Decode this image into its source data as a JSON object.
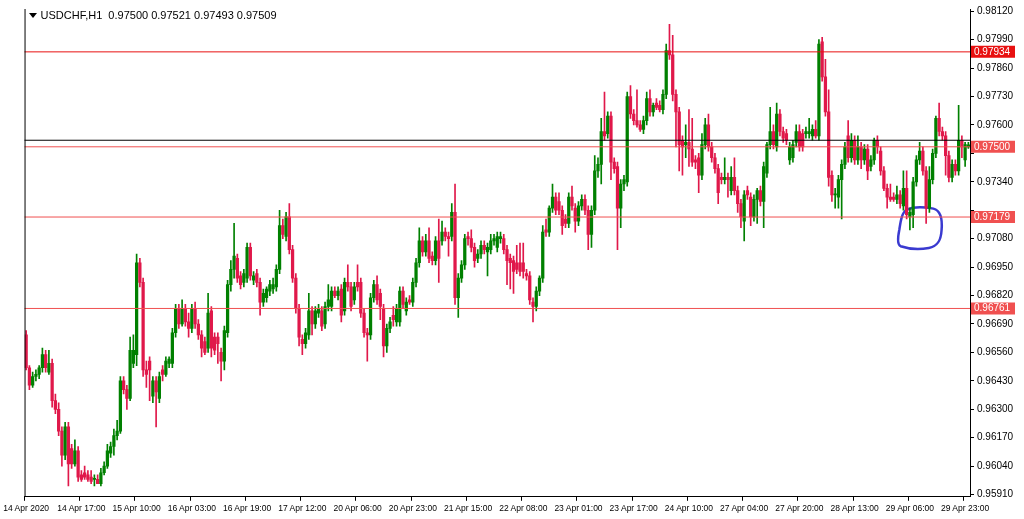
{
  "chart_data": {
    "type": "candlestick",
    "title": "USDCHF,H1  0.97500 0.97521 0.97493 0.97509",
    "categories": [
      "14 Apr 2020",
      null,
      null,
      null,
      null,
      null,
      null,
      null,
      null,
      null,
      null,
      null,
      null,
      null,
      null,
      null,
      null,
      "14 Apr 17:00",
      null,
      null,
      null,
      null,
      null,
      null,
      null,
      null,
      null,
      null,
      null,
      null,
      null,
      null,
      null,
      null,
      "15 Apr 10:00",
      null,
      null,
      null,
      null,
      null,
      null,
      null,
      null,
      null,
      null,
      null,
      null,
      null,
      null,
      null,
      null,
      "16 Apr 03:00",
      null,
      null,
      null,
      null,
      null,
      null,
      null,
      null,
      null,
      null,
      null,
      null,
      null,
      null,
      null,
      null,
      "16 Apr 19:00",
      null,
      null,
      null,
      null,
      null,
      null,
      null,
      null,
      null,
      null,
      null,
      null,
      null,
      null,
      null,
      null,
      "17 Apr 12:00",
      null,
      null,
      null,
      null,
      null,
      null,
      null,
      null,
      null,
      null,
      null,
      null,
      null,
      null,
      null,
      null,
      "20 Apr 06:00",
      null,
      null,
      null,
      null,
      null,
      null,
      null,
      null,
      null,
      null,
      null,
      null,
      null,
      null,
      null,
      null,
      "20 Apr 23:00",
      null,
      null,
      null,
      null,
      null,
      null,
      null,
      null,
      null,
      null,
      null,
      null,
      null,
      null,
      null,
      null,
      "21 Apr 15:00",
      null,
      null,
      null,
      null,
      null,
      null,
      null,
      null,
      null,
      null,
      null,
      null,
      null,
      null,
      null,
      null,
      "22 Apr 08:00",
      null,
      null,
      null,
      null,
      null,
      null,
      null,
      null,
      null,
      null,
      null,
      null,
      null,
      null,
      null,
      null,
      "23 Apr 01:00",
      null,
      null,
      null,
      null,
      null,
      null,
      null,
      null,
      null,
      null,
      null,
      null,
      null,
      null,
      null,
      null,
      "23 Apr 17:00",
      null,
      null,
      null,
      null,
      null,
      null,
      null,
      null,
      null,
      null,
      null,
      null,
      null,
      null,
      null,
      null,
      "24 Apr 10:00",
      null,
      null,
      null,
      null,
      null,
      null,
      null,
      null,
      null,
      null,
      null,
      null,
      null,
      null,
      null,
      null,
      "27 Apr 04:00",
      null,
      null,
      null,
      null,
      null,
      null,
      null,
      null,
      null,
      null,
      null,
      null,
      null,
      null,
      null,
      null,
      "27 Apr 20:00",
      null,
      null,
      null,
      null,
      null,
      null,
      null,
      null,
      null,
      null,
      null,
      null,
      null,
      null,
      null,
      null,
      "28 Apr 13:00",
      null,
      null,
      null,
      null,
      null,
      null,
      null,
      null,
      null,
      null,
      null,
      null,
      null,
      null,
      null,
      null,
      "29 Apr 06:00",
      null,
      null,
      null,
      null,
      null,
      null,
      null,
      null,
      null,
      null,
      null,
      null,
      null,
      null,
      null,
      null,
      "29 Apr 23:00",
      null
    ],
    "ohlc": [
      [
        0.9664,
        0.9666,
        0.9648,
        0.9649
      ],
      [
        0.9649,
        0.965,
        0.9639,
        0.9641
      ],
      [
        0.9641,
        0.9647,
        0.964,
        0.9645
      ],
      [
        0.9645,
        0.9648,
        0.9643,
        0.9646
      ],
      [
        0.9646,
        0.965,
        0.9644,
        0.9649
      ],
      [
        0.9649,
        0.9658,
        0.9647,
        0.9655
      ],
      [
        0.9655,
        0.9657,
        0.9647,
        0.9649
      ],
      [
        0.9647,
        0.9657,
        0.9646,
        0.9651
      ],
      [
        0.9651,
        0.9653,
        0.9631,
        0.9634
      ],
      [
        0.9634,
        0.9637,
        0.9628,
        0.963
      ],
      [
        0.963,
        0.9633,
        0.9618,
        0.962
      ],
      [
        0.962,
        0.9622,
        0.9604,
        0.9609
      ],
      [
        0.9609,
        0.9624,
        0.9607,
        0.9622
      ],
      [
        0.9622,
        0.9624,
        0.9595,
        0.9605
      ],
      [
        0.9612,
        0.9614,
        0.9603,
        0.9605
      ],
      [
        0.9605,
        0.9616,
        0.9604,
        0.9611
      ],
      [
        0.9611,
        0.9613,
        0.9597,
        0.9599
      ],
      [
        0.96,
        0.9602,
        0.9597,
        0.9598
      ],
      [
        0.9601,
        0.9604,
        0.9598,
        0.9599
      ],
      [
        0.96,
        0.9602,
        0.9597,
        0.9598
      ],
      [
        0.9599,
        0.9602,
        0.9596,
        0.9597
      ],
      [
        0.9598,
        0.96,
        0.9595,
        0.9598
      ],
      [
        0.9598,
        0.96,
        0.9596,
        0.9596
      ],
      [
        0.9596,
        0.9603,
        0.9595,
        0.9601
      ],
      [
        0.9601,
        0.9606,
        0.96,
        0.9604
      ],
      [
        0.9604,
        0.9614,
        0.9603,
        0.9611
      ],
      [
        0.961,
        0.9615,
        0.9608,
        0.9613
      ],
      [
        0.9613,
        0.9621,
        0.9609,
        0.9618
      ],
      [
        0.9618,
        0.9625,
        0.9616,
        0.962
      ],
      [
        0.962,
        0.9645,
        0.9619,
        0.9643
      ],
      [
        0.9643,
        0.9645,
        0.9637,
        0.9639
      ],
      [
        0.9639,
        0.9641,
        0.963,
        0.9635
      ],
      [
        0.9635,
        0.9663,
        0.9634,
        0.9657
      ],
      [
        0.9651,
        0.9664,
        0.9649,
        0.9657
      ],
      [
        0.9655,
        0.9701,
        0.965,
        0.9697
      ],
      [
        0.9697,
        0.9699,
        0.9686,
        0.9688
      ],
      [
        0.9688,
        0.969,
        0.9645,
        0.9648
      ],
      [
        0.9648,
        0.9652,
        0.964,
        0.9646
      ],
      [
        0.9652,
        0.9654,
        0.9634,
        0.9648
      ],
      [
        0.9636,
        0.9645,
        0.9633,
        0.9643
      ],
      [
        0.9643,
        0.9645,
        0.9622,
        0.9638
      ],
      [
        0.9635,
        0.9647,
        0.9633,
        0.9645
      ],
      [
        0.9648,
        0.965,
        0.9643,
        0.9646
      ],
      [
        0.9646,
        0.9654,
        0.9645,
        0.9652
      ],
      [
        0.9651,
        0.9654,
        0.9649,
        0.9653
      ],
      [
        0.9651,
        0.9667,
        0.9649,
        0.9665
      ],
      [
        0.9665,
        0.9678,
        0.9663,
        0.9676
      ],
      [
        0.9676,
        0.9678,
        0.9667,
        0.9669
      ],
      [
        0.9669,
        0.968,
        0.9668,
        0.9676
      ],
      [
        0.9676,
        0.9678,
        0.9668,
        0.967
      ],
      [
        0.967,
        0.9674,
        0.9663,
        0.9667
      ],
      [
        0.9667,
        0.9678,
        0.9665,
        0.9676
      ],
      [
        0.9676,
        0.9679,
        0.9667,
        0.9669
      ],
      [
        0.9669,
        0.9671,
        0.9662,
        0.9664
      ],
      [
        0.9664,
        0.9666,
        0.9654,
        0.9658
      ],
      [
        0.9661,
        0.9663,
        0.9655,
        0.9656
      ],
      [
        0.9658,
        0.9683,
        0.9656,
        0.9674
      ],
      [
        0.9675,
        0.9677,
        0.9654,
        0.9658
      ],
      [
        0.9663,
        0.9665,
        0.9655,
        0.9657
      ],
      [
        0.9663,
        0.9665,
        0.9651,
        0.966
      ],
      [
        0.9656,
        0.9658,
        0.9643,
        0.9652
      ],
      [
        0.9652,
        0.9668,
        0.9648,
        0.9666
      ],
      [
        0.9665,
        0.9689,
        0.9663,
        0.9687
      ],
      [
        0.9687,
        0.9698,
        0.9684,
        0.9694
      ],
      [
        0.9694,
        0.9715,
        0.969,
        0.97
      ],
      [
        0.9699,
        0.9701,
        0.9688,
        0.969
      ],
      [
        0.9691,
        0.9693,
        0.9685,
        0.9687
      ],
      [
        0.9688,
        0.9694,
        0.9686,
        0.9692
      ],
      [
        0.969,
        0.9706,
        0.9688,
        0.9704
      ],
      [
        0.9704,
        0.9706,
        0.9689,
        0.9691
      ],
      [
        0.9689,
        0.9693,
        0.9687,
        0.9691
      ],
      [
        0.9692,
        0.9694,
        0.9686,
        0.9688
      ],
      [
        0.9688,
        0.969,
        0.9673,
        0.9679
      ],
      [
        0.9679,
        0.9685,
        0.9677,
        0.9683
      ],
      [
        0.9681,
        0.9686,
        0.9679,
        0.9685
      ],
      [
        0.9684,
        0.9689,
        0.9682,
        0.9687
      ],
      [
        0.9685,
        0.969,
        0.9683,
        0.9687
      ],
      [
        0.9686,
        0.9696,
        0.9684,
        0.9694
      ],
      [
        0.9694,
        0.9721,
        0.9692,
        0.9714
      ],
      [
        0.9714,
        0.9717,
        0.9708,
        0.971
      ],
      [
        0.9709,
        0.972,
        0.9707,
        0.9718
      ],
      [
        0.9718,
        0.9724,
        0.9701,
        0.9703
      ],
      [
        0.9703,
        0.9705,
        0.9688,
        0.969
      ],
      [
        0.969,
        0.9692,
        0.9674,
        0.9676
      ],
      [
        0.9676,
        0.9678,
        0.9659,
        0.9663
      ],
      [
        0.9662,
        0.9664,
        0.9655,
        0.966
      ],
      [
        0.966,
        0.9667,
        0.9658,
        0.9665
      ],
      [
        0.9664,
        0.9683,
        0.9662,
        0.9675
      ],
      [
        0.9675,
        0.9677,
        0.9664,
        0.9669
      ],
      [
        0.9669,
        0.9677,
        0.9667,
        0.9675
      ],
      [
        0.9674,
        0.9678,
        0.9672,
        0.9676
      ],
      [
        0.9675,
        0.9677,
        0.9666,
        0.9668
      ],
      [
        0.9669,
        0.9679,
        0.9667,
        0.9677
      ],
      [
        0.9677,
        0.9687,
        0.9675,
        0.968
      ],
      [
        0.9677,
        0.9686,
        0.9675,
        0.9684
      ],
      [
        0.9684,
        0.9686,
        0.9681,
        0.9682
      ],
      [
        0.9682,
        0.9686,
        0.968,
        0.9684
      ],
      [
        0.9685,
        0.9687,
        0.967,
        0.9673
      ],
      [
        0.9675,
        0.969,
        0.9673,
        0.9688
      ],
      [
        0.9688,
        0.9696,
        0.9684,
        0.9686
      ],
      [
        0.9686,
        0.9688,
        0.9675,
        0.9677
      ],
      [
        0.968,
        0.9688,
        0.9678,
        0.9686
      ],
      [
        0.9688,
        0.9696,
        0.9684,
        0.9686
      ],
      [
        0.9688,
        0.969,
        0.9672,
        0.9674
      ],
      [
        0.9674,
        0.9676,
        0.9663,
        0.9665
      ],
      [
        0.9665,
        0.9667,
        0.9652,
        0.9664
      ],
      [
        0.9664,
        0.9683,
        0.9662,
        0.9681
      ],
      [
        0.9681,
        0.9689,
        0.9679,
        0.9687
      ],
      [
        0.9687,
        0.9691,
        0.9678,
        0.968
      ],
      [
        0.9683,
        0.9685,
        0.9671,
        0.9677
      ],
      [
        0.9676,
        0.9678,
        0.9654,
        0.9659
      ],
      [
        0.9659,
        0.9669,
        0.9656,
        0.9667
      ],
      [
        0.9667,
        0.9672,
        0.9665,
        0.967
      ],
      [
        0.9673,
        0.9677,
        0.9668,
        0.9671
      ],
      [
        0.967,
        0.9678,
        0.9668,
        0.9676
      ],
      [
        0.967,
        0.9686,
        0.9668,
        0.9684
      ],
      [
        0.9684,
        0.9686,
        0.9676,
        0.9678
      ],
      [
        0.9675,
        0.9681,
        0.9673,
        0.9679
      ],
      [
        0.968,
        0.9682,
        0.9678,
        0.9679
      ],
      [
        0.9679,
        0.969,
        0.9677,
        0.9688
      ],
      [
        0.9688,
        0.9699,
        0.9686,
        0.9697
      ],
      [
        0.9697,
        0.9713,
        0.9695,
        0.9707
      ],
      [
        0.9707,
        0.9709,
        0.97,
        0.9702
      ],
      [
        0.9702,
        0.971,
        0.97,
        0.9707
      ],
      [
        0.9707,
        0.9713,
        0.9697,
        0.9699
      ],
      [
        0.97,
        0.9702,
        0.9696,
        0.9698
      ],
      [
        0.9698,
        0.9709,
        0.9696,
        0.9707
      ],
      [
        0.9707,
        0.9717,
        0.9688,
        0.9699
      ],
      [
        0.9707,
        0.9716,
        0.9705,
        0.9711
      ],
      [
        0.9711,
        0.9713,
        0.9707,
        0.9709
      ],
      [
        0.9709,
        0.9711,
        0.97,
        0.9708
      ],
      [
        0.9709,
        0.9724,
        0.9707,
        0.972
      ],
      [
        0.972,
        0.9733,
        0.9678,
        0.9681
      ],
      [
        0.9681,
        0.9692,
        0.9672,
        0.969
      ],
      [
        0.969,
        0.9698,
        0.9688,
        0.9696
      ],
      [
        0.9696,
        0.971,
        0.9694,
        0.9708
      ],
      [
        0.9709,
        0.9711,
        0.9705,
        0.9708
      ],
      [
        0.9708,
        0.9712,
        0.9702,
        0.9704
      ],
      [
        0.9704,
        0.9706,
        0.9695,
        0.9698
      ],
      [
        0.9699,
        0.9703,
        0.9697,
        0.9701
      ],
      [
        0.9701,
        0.9707,
        0.9699,
        0.9705
      ],
      [
        0.9705,
        0.9707,
        0.9701,
        0.9703
      ],
      [
        0.9702,
        0.9706,
        0.9691,
        0.9704
      ],
      [
        0.9703,
        0.971,
        0.9701,
        0.9707
      ],
      [
        0.9707,
        0.971,
        0.9705,
        0.9708
      ],
      [
        0.9704,
        0.9711,
        0.9702,
        0.9709
      ],
      [
        0.9708,
        0.9711,
        0.9706,
        0.9709
      ],
      [
        0.9708,
        0.971,
        0.9701,
        0.9703
      ],
      [
        0.9703,
        0.9705,
        0.9687,
        0.9698
      ],
      [
        0.9699,
        0.9701,
        0.9685,
        0.9697
      ],
      [
        0.9698,
        0.97,
        0.9683,
        0.9693
      ],
      [
        0.9697,
        0.9705,
        0.9692,
        0.9694
      ],
      [
        0.9697,
        0.9706,
        0.9691,
        0.9693
      ],
      [
        0.9697,
        0.9706,
        0.969,
        0.9693
      ],
      [
        0.9692,
        0.9694,
        0.9689,
        0.9691
      ],
      [
        0.9691,
        0.9693,
        0.9678,
        0.968
      ],
      [
        0.9679,
        0.9681,
        0.967,
        0.9677
      ],
      [
        0.9677,
        0.9686,
        0.9675,
        0.9684
      ],
      [
        0.9684,
        0.9691,
        0.9682,
        0.969
      ],
      [
        0.969,
        0.9714,
        0.9688,
        0.9711
      ],
      [
        0.9712,
        0.9717,
        0.9709,
        0.9711
      ],
      [
        0.9711,
        0.9723,
        0.9709,
        0.9722
      ],
      [
        0.9722,
        0.9733,
        0.972,
        0.9727
      ],
      [
        0.9727,
        0.9729,
        0.9719,
        0.9721
      ],
      [
        0.9725,
        0.9729,
        0.9719,
        0.9721
      ],
      [
        0.9721,
        0.9723,
        0.971,
        0.9714
      ],
      [
        0.9717,
        0.9719,
        0.9713,
        0.9715
      ],
      [
        0.9715,
        0.9729,
        0.9713,
        0.9727
      ],
      [
        0.9727,
        0.9732,
        0.9721,
        0.9723
      ],
      [
        0.9722,
        0.9724,
        0.9711,
        0.9716
      ],
      [
        0.9716,
        0.9725,
        0.9714,
        0.9723
      ],
      [
        0.9723,
        0.9728,
        0.9721,
        0.9726
      ],
      [
        0.9726,
        0.9728,
        0.9719,
        0.9721
      ],
      [
        0.9721,
        0.9723,
        0.9703,
        0.971
      ],
      [
        0.971,
        0.9723,
        0.9704,
        0.9721
      ],
      [
        0.9721,
        0.9746,
        0.9719,
        0.9739
      ],
      [
        0.9739,
        0.9745,
        0.9736,
        0.9742
      ],
      [
        0.9742,
        0.9763,
        0.9733,
        0.9757
      ],
      [
        0.9757,
        0.9775,
        0.9753,
        0.9755
      ],
      [
        0.9756,
        0.9766,
        0.9754,
        0.9764
      ],
      [
        0.9764,
        0.9766,
        0.9735,
        0.9743
      ],
      [
        0.9743,
        0.9745,
        0.9738,
        0.974
      ],
      [
        0.9741,
        0.9743,
        0.9703,
        0.9722
      ],
      [
        0.9722,
        0.9735,
        0.9713,
        0.9733
      ],
      [
        0.9733,
        0.9737,
        0.973,
        0.9735
      ],
      [
        0.9734,
        0.9775,
        0.9732,
        0.9773
      ],
      [
        0.9773,
        0.9778,
        0.9763,
        0.9765
      ],
      [
        0.9765,
        0.9767,
        0.976,
        0.9762
      ],
      [
        0.9762,
        0.9776,
        0.9759,
        0.976
      ],
      [
        0.976,
        0.9762,
        0.9757,
        0.9758
      ],
      [
        0.9758,
        0.9764,
        0.9756,
        0.9762
      ],
      [
        0.9762,
        0.9775,
        0.976,
        0.9772
      ],
      [
        0.9772,
        0.9776,
        0.9764,
        0.9766
      ],
      [
        0.9766,
        0.977,
        0.9764,
        0.9769
      ],
      [
        0.977,
        0.9772,
        0.9767,
        0.9768
      ],
      [
        0.9769,
        0.9771,
        0.9766,
        0.9767
      ],
      [
        0.9767,
        0.9776,
        0.9765,
        0.9774
      ],
      [
        0.9774,
        0.9797,
        0.9772,
        0.9794
      ],
      [
        0.9794,
        0.9806,
        0.979,
        0.9792
      ],
      [
        0.9792,
        0.9801,
        0.9771,
        0.9774
      ],
      [
        0.9774,
        0.9776,
        0.975,
        0.9766
      ],
      [
        0.9766,
        0.9768,
        0.9739,
        0.9751
      ],
      [
        0.9753,
        0.9755,
        0.9737,
        0.975
      ],
      [
        0.9751,
        0.976,
        0.9745,
        0.9752
      ],
      [
        0.9752,
        0.9767,
        0.9741,
        0.9749
      ],
      [
        0.9749,
        0.9763,
        0.9741,
        0.9743
      ],
      [
        0.9744,
        0.9746,
        0.974,
        0.9743
      ],
      [
        0.9745,
        0.9747,
        0.9729,
        0.9737
      ],
      [
        0.9737,
        0.9756,
        0.9735,
        0.9751
      ],
      [
        0.9751,
        0.9763,
        0.9749,
        0.976
      ],
      [
        0.976,
        0.9765,
        0.9748,
        0.975
      ],
      [
        0.975,
        0.9752,
        0.9743,
        0.9745
      ],
      [
        0.9745,
        0.9747,
        0.9738,
        0.974
      ],
      [
        0.974,
        0.9742,
        0.9724,
        0.9729
      ],
      [
        0.9736,
        0.9738,
        0.9733,
        0.9735
      ],
      [
        0.9735,
        0.9745,
        0.9733,
        0.9736
      ],
      [
        0.9736,
        0.9738,
        0.9727,
        0.9735
      ],
      [
        0.973,
        0.9741,
        0.9728,
        0.9736
      ],
      [
        0.9736,
        0.9745,
        0.9728,
        0.973
      ],
      [
        0.973,
        0.9732,
        0.972,
        0.9724
      ],
      [
        0.9724,
        0.9726,
        0.9713,
        0.9718
      ],
      [
        0.9716,
        0.973,
        0.9707,
        0.9728
      ],
      [
        0.973,
        0.9732,
        0.9726,
        0.9728
      ],
      [
        0.9727,
        0.9729,
        0.9714,
        0.9718
      ],
      [
        0.9718,
        0.9728,
        0.9716,
        0.9726
      ],
      [
        0.9726,
        0.9731,
        0.9715,
        0.973
      ],
      [
        0.973,
        0.9732,
        0.9723,
        0.9725
      ],
      [
        0.9725,
        0.9743,
        0.9713,
        0.9741
      ],
      [
        0.9738,
        0.9752,
        0.9736,
        0.9751
      ],
      [
        0.9751,
        0.9768,
        0.9749,
        0.9757
      ],
      [
        0.9757,
        0.976,
        0.9749,
        0.9751
      ],
      [
        0.975,
        0.977,
        0.9748,
        0.9765
      ],
      [
        0.9765,
        0.9767,
        0.9755,
        0.9757
      ],
      [
        0.9757,
        0.9759,
        0.9752,
        0.9754
      ],
      [
        0.9756,
        0.9758,
        0.9751,
        0.9753
      ],
      [
        0.9744,
        0.9752,
        0.9742,
        0.975
      ],
      [
        0.9745,
        0.9753,
        0.9743,
        0.9751
      ],
      [
        0.9752,
        0.976,
        0.975,
        0.9757
      ],
      [
        0.9757,
        0.976,
        0.9748,
        0.975
      ],
      [
        0.9756,
        0.9758,
        0.9748,
        0.975
      ],
      [
        0.9756,
        0.9759,
        0.9754,
        0.9757
      ],
      [
        0.9756,
        0.9763,
        0.9754,
        0.9757
      ],
      [
        0.9755,
        0.976,
        0.9753,
        0.9758
      ],
      [
        0.9758,
        0.9762,
        0.9754,
        0.9755
      ],
      [
        0.9755,
        0.9799,
        0.9753,
        0.9797
      ],
      [
        0.9798,
        0.98,
        0.978,
        0.9782
      ],
      [
        0.9782,
        0.979,
        0.9764,
        0.9766
      ],
      [
        0.9766,
        0.9776,
        0.9732,
        0.9736
      ],
      [
        0.9737,
        0.9739,
        0.9725,
        0.9728
      ],
      [
        0.9728,
        0.9731,
        0.9722,
        0.9728
      ],
      [
        0.9727,
        0.9737,
        0.9722,
        0.9735
      ],
      [
        0.9735,
        0.9744,
        0.9717,
        0.9742
      ],
      [
        0.9742,
        0.9752,
        0.974,
        0.975
      ],
      [
        0.9755,
        0.9762,
        0.9743,
        0.9745
      ],
      [
        0.9745,
        0.9756,
        0.9743,
        0.9753
      ],
      [
        0.9753,
        0.9755,
        0.9742,
        0.9744
      ],
      [
        0.9744,
        0.9755,
        0.9742,
        0.975
      ],
      [
        0.975,
        0.9752,
        0.974,
        0.9744
      ],
      [
        0.9744,
        0.9751,
        0.9742,
        0.9749
      ],
      [
        0.9749,
        0.9751,
        0.9735,
        0.9739
      ],
      [
        0.9741,
        0.9746,
        0.9739,
        0.9744
      ],
      [
        0.9744,
        0.9754,
        0.9742,
        0.9753
      ],
      [
        0.9753,
        0.9755,
        0.9747,
        0.975
      ],
      [
        0.9748,
        0.975,
        0.9737,
        0.9739
      ],
      [
        0.9739,
        0.9741,
        0.973,
        0.9731
      ],
      [
        0.9731,
        0.9733,
        0.9722,
        0.9727
      ],
      [
        0.9727,
        0.9733,
        0.9725,
        0.9726
      ],
      [
        0.9727,
        0.9729,
        0.9725,
        0.9726
      ],
      [
        0.9726,
        0.9732,
        0.9724,
        0.9728
      ],
      [
        0.9728,
        0.973,
        0.9722,
        0.9724
      ],
      [
        0.9723,
        0.9739,
        0.9721,
        0.9731
      ],
      [
        0.9731,
        0.9739,
        0.9717,
        0.9719
      ],
      [
        0.9718,
        0.9722,
        0.9712,
        0.972
      ],
      [
        0.9719,
        0.9736,
        0.9713,
        0.9734
      ],
      [
        0.9734,
        0.9746,
        0.9732,
        0.9744
      ],
      [
        0.9744,
        0.9752,
        0.9742,
        0.9748
      ],
      [
        0.9748,
        0.975,
        0.9737,
        0.9739
      ],
      [
        0.9739,
        0.9741,
        0.9715,
        0.9722
      ],
      [
        0.9722,
        0.9741,
        0.972,
        0.9735
      ],
      [
        0.9735,
        0.9749,
        0.9733,
        0.9747
      ],
      [
        0.9747,
        0.9764,
        0.9745,
        0.9763
      ],
      [
        0.9763,
        0.977,
        0.9755,
        0.9757
      ],
      [
        0.9757,
        0.9759,
        0.9753,
        0.9755
      ],
      [
        0.9755,
        0.9757,
        0.9737,
        0.9746
      ],
      [
        0.9746,
        0.9748,
        0.9734,
        0.9736
      ],
      [
        0.9736,
        0.9744,
        0.9734,
        0.9742
      ],
      [
        0.9742,
        0.9744,
        0.9737,
        0.9739
      ],
      [
        0.9739,
        0.9769,
        0.9737,
        0.9753
      ],
      [
        0.9753,
        0.9755,
        0.9745,
        0.975
      ],
      [
        0.9744,
        0.9752,
        0.9741,
        0.9751
      ],
      [
        0.975,
        0.97521,
        0.97493,
        0.97509
      ]
    ],
    "ylim": [
      0.959,
      0.9813
    ],
    "yticks": [
      {
        "value": 0.9591,
        "label": "0.95910"
      },
      {
        "value": 0.9604,
        "label": "0.96040"
      },
      {
        "value": 0.9617,
        "label": "0.96170"
      },
      {
        "value": 0.963,
        "label": "0.96300"
      },
      {
        "value": 0.9643,
        "label": "0.96430"
      },
      {
        "value": 0.9656,
        "label": "0.96560"
      },
      {
        "value": 0.9669,
        "label": "0.96690"
      },
      {
        "value": 0.9682,
        "label": "0.96820"
      },
      {
        "value": 0.9695,
        "label": "0.96950"
      },
      {
        "value": 0.9708,
        "label": "0.97080"
      },
      {
        "value": 0.9721,
        "label": null
      },
      {
        "value": 0.9734,
        "label": "0.97340"
      },
      {
        "value": 0.9747,
        "label": null
      },
      {
        "value": 0.976,
        "label": "0.97600"
      },
      {
        "value": 0.9773,
        "label": "0.97730"
      },
      {
        "value": 0.9786,
        "label": "0.97860"
      },
      {
        "value": 0.9799,
        "label": "0.97990"
      },
      {
        "value": 0.9812,
        "label": "0.98120"
      }
    ],
    "ref_lines": [
      {
        "axis": "y",
        "value": 0.97934,
        "label": "0.97934",
        "color": "#e81010"
      },
      {
        "axis": "y",
        "value": 0.9753,
        "color": "#000000"
      },
      {
        "axis": "y",
        "value": 0.975,
        "label": "0.97500",
        "color": "#f05050"
      },
      {
        "axis": "y",
        "value": 0.97179,
        "label": "0.97179",
        "color": "#f05050"
      },
      {
        "axis": "y",
        "value": 0.96761,
        "label": "0.96761",
        "color": "#f05050"
      }
    ],
    "grid": false,
    "legend": false
  }
}
